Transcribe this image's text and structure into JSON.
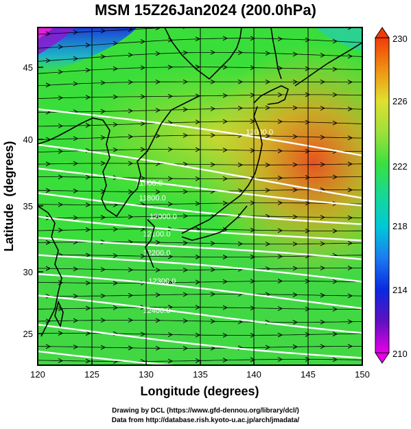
{
  "title": "MSM 15Z26Jan2024 (200.0hPa)",
  "xlabel": "Longitude (degrees)",
  "ylabel": "Latitude  (degrees)",
  "credits": {
    "line1": "Drawing by DCL (https://www.gfd-dennou.org/library/dcl/)",
    "line2": "Data from http://database.rish.kyoto-u.ac.jp/arch/jmadata/"
  },
  "map": {
    "lon_range": [
      120,
      150
    ],
    "lat_range": [
      22.4,
      47.6
    ],
    "lon_ticks": [
      "120",
      "125",
      "130",
      "135",
      "140",
      "145",
      "150"
    ],
    "lat_ticks": [
      "25",
      "30",
      "35",
      "40",
      "45"
    ],
    "shaded_variable_range": [
      210,
      230
    ],
    "contour_labels": [
      {
        "text": "12000.0",
        "lon": 140.5,
        "lat": 39.6
      },
      {
        "text": "11900.0",
        "lon": 130.3,
        "lat": 35.8
      },
      {
        "text": "11800.0",
        "lon": 130.6,
        "lat": 34.7
      },
      {
        "text": "12000.0",
        "lon": 131.6,
        "lat": 33.3
      },
      {
        "text": "12100.0",
        "lon": 131.0,
        "lat": 32.0
      },
      {
        "text": "12200.0",
        "lon": 131.0,
        "lat": 30.6
      },
      {
        "text": "12300.0",
        "lon": 131.5,
        "lat": 28.5
      },
      {
        "text": "12400.0",
        "lon": 131.0,
        "lat": 26.3
      }
    ]
  },
  "colorbar": {
    "min": 210,
    "max": 230,
    "tick_labels": [
      "230",
      "226",
      "222",
      "218",
      "214",
      "210"
    ],
    "colors": [
      "#e800e8",
      "#6010c0",
      "#0a28e0",
      "#1c7af0",
      "#00c8d8",
      "#16d896",
      "#3ae040",
      "#7ce03a",
      "#c8e030",
      "#f0c020",
      "#f08010",
      "#f03c0a"
    ]
  }
}
